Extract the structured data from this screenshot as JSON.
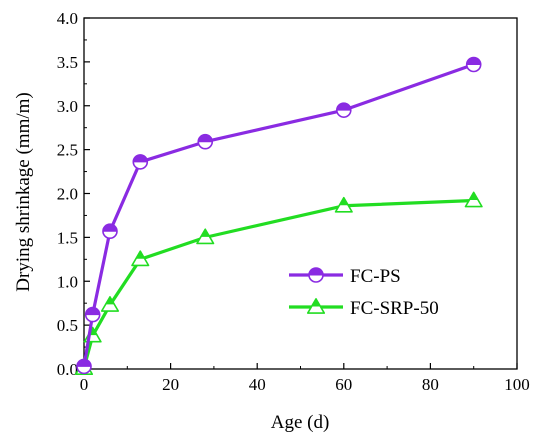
{
  "chart_data": {
    "type": "line",
    "title": "",
    "xlabel": "Age (d)",
    "ylabel": "Drying shrinkage (mm/m)",
    "xlim": [
      0,
      100
    ],
    "ylim": [
      0,
      4
    ],
    "xticks": [
      "0",
      "20",
      "40",
      "60",
      "80",
      "100"
    ],
    "yticks": [
      "0.0",
      "0.5",
      "1.0",
      "1.5",
      "2.0",
      "2.5",
      "3.0",
      "3.5",
      "4.0"
    ],
    "grid": false,
    "legend_position": "lower-right",
    "series": [
      {
        "name": "FC-PS",
        "color": "#8a2be2",
        "marker": "half-filled-circle",
        "x": [
          0,
          2,
          6,
          13,
          28,
          60,
          90
        ],
        "y": [
          0.03,
          0.62,
          1.57,
          2.36,
          2.59,
          2.95,
          3.47
        ]
      },
      {
        "name": "FC-SRP-50",
        "color": "#22dd22",
        "marker": "half-filled-triangle",
        "x": [
          0,
          2,
          6,
          13,
          28,
          60,
          90
        ],
        "y": [
          0.01,
          0.38,
          0.73,
          1.25,
          1.5,
          1.86,
          1.92
        ]
      }
    ]
  }
}
